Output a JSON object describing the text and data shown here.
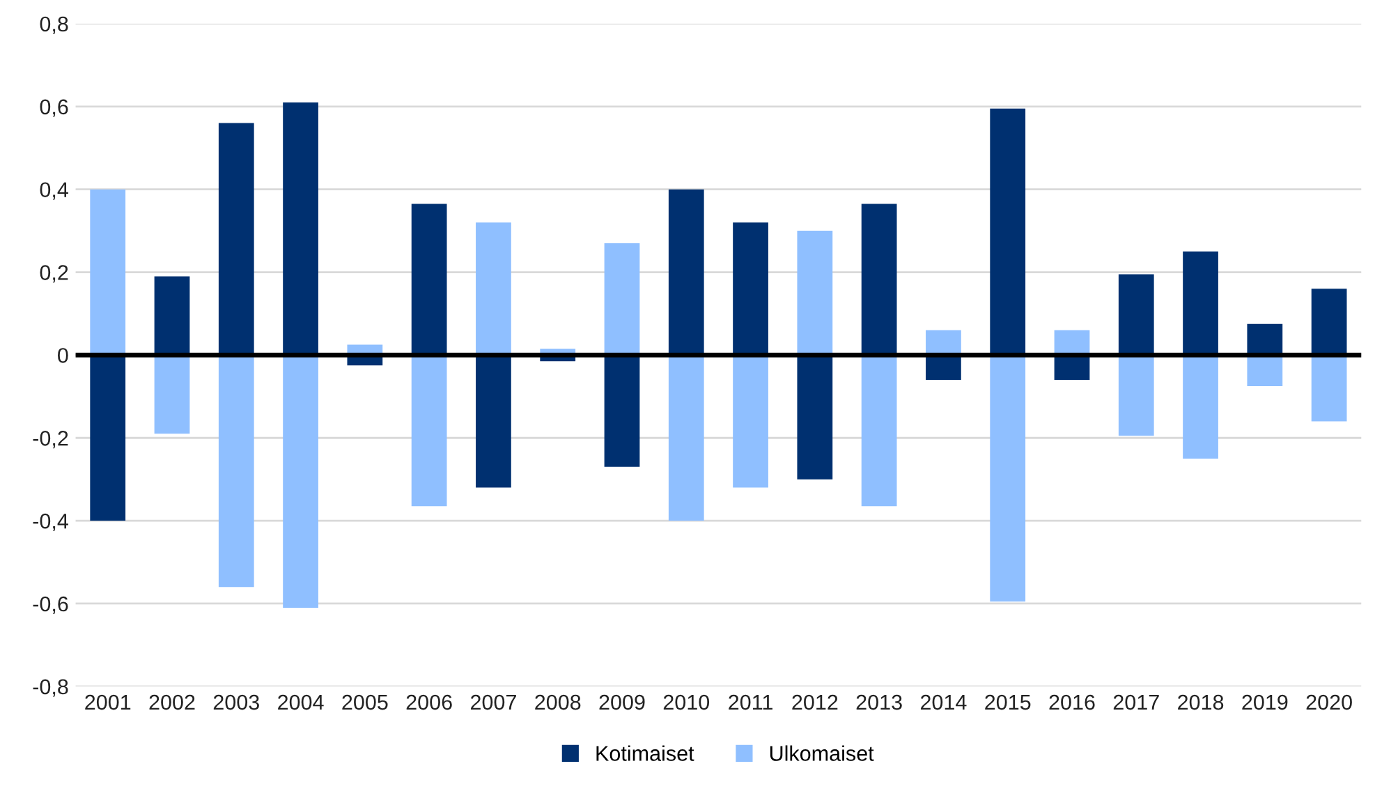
{
  "chart_data": {
    "type": "bar",
    "categories": [
      "2001",
      "2002",
      "2003",
      "2004",
      "2005",
      "2006",
      "2007",
      "2008",
      "2009",
      "2010",
      "2011",
      "2012",
      "2013",
      "2014",
      "2015",
      "2016",
      "2017",
      "2018",
      "2019",
      "2020"
    ],
    "series": [
      {
        "name": "Kotimaiset",
        "color": "#003070",
        "values": [
          -0.4,
          0.19,
          0.56,
          0.61,
          -0.025,
          0.365,
          -0.32,
          -0.015,
          -0.27,
          0.4,
          0.32,
          -0.3,
          0.365,
          -0.06,
          0.595,
          -0.06,
          0.195,
          0.25,
          0.075,
          0.16
        ]
      },
      {
        "name": "Ulkomaiset",
        "color": "#8fbfff",
        "values": [
          0.4,
          -0.19,
          -0.56,
          -0.61,
          0.025,
          -0.365,
          0.32,
          0.015,
          0.27,
          -0.4,
          -0.32,
          0.3,
          -0.365,
          0.06,
          -0.595,
          0.06,
          -0.195,
          -0.25,
          -0.075,
          -0.16
        ]
      }
    ],
    "stacked": true,
    "ylim": [
      -0.8,
      0.8
    ],
    "yticks": [
      {
        "value": -0.8,
        "label": "-0,8"
      },
      {
        "value": -0.6,
        "label": "-0,6"
      },
      {
        "value": -0.4,
        "label": "-0,4"
      },
      {
        "value": -0.2,
        "label": "-0,2"
      },
      {
        "value": 0,
        "label": "0"
      },
      {
        "value": 0.2,
        "label": "0,2"
      },
      {
        "value": 0.4,
        "label": "0,4"
      },
      {
        "value": 0.6,
        "label": "0,6"
      },
      {
        "value": 0.8,
        "label": "0,8"
      }
    ],
    "grid": "y",
    "legend": "bottom"
  }
}
